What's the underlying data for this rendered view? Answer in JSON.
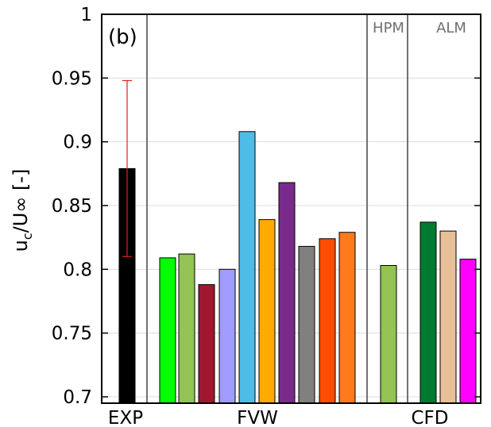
{
  "chart_data": {
    "type": "bar",
    "panel_label": "(b)",
    "ylabel": {
      "base": "u",
      "sub": "c",
      "rest": "/U∞ [-]"
    },
    "ylim": [
      0.695,
      1.0
    ],
    "yticks": [
      0.7,
      0.75,
      0.8,
      0.85,
      0.9,
      0.95,
      1.0
    ],
    "ytick_labels": [
      "0.7",
      "0.75",
      "0.8",
      "0.85",
      "0.9",
      "0.95",
      "1"
    ],
    "grid": true,
    "groups": [
      "EXP",
      "FVW",
      "CFD"
    ],
    "sections": [
      "HPM",
      "ALM"
    ],
    "bars": [
      {
        "value": 0.879,
        "color": "#000000",
        "error": [
          0.81,
          0.948
        ],
        "error_color": "#e02020"
      },
      {
        "value": 0.809,
        "color": "#00ff00"
      },
      {
        "value": 0.812,
        "color": "#92c353"
      },
      {
        "value": 0.788,
        "color": "#a01830"
      },
      {
        "value": 0.8,
        "color": "#a29bff"
      },
      {
        "value": 0.908,
        "color": "#4dbde8"
      },
      {
        "value": 0.839,
        "color": "#ffaa00"
      },
      {
        "value": 0.868,
        "color": "#7a2a8a"
      },
      {
        "value": 0.818,
        "color": "#808080"
      },
      {
        "value": 0.824,
        "color": "#ff4d00"
      },
      {
        "value": 0.829,
        "color": "#ff7a1a"
      },
      {
        "value": 0.803,
        "color": "#92c353"
      },
      {
        "value": 0.837,
        "color": "#007a30"
      },
      {
        "value": 0.83,
        "color": "#e8c098"
      },
      {
        "value": 0.808,
        "color": "#ff00ff"
      }
    ]
  }
}
